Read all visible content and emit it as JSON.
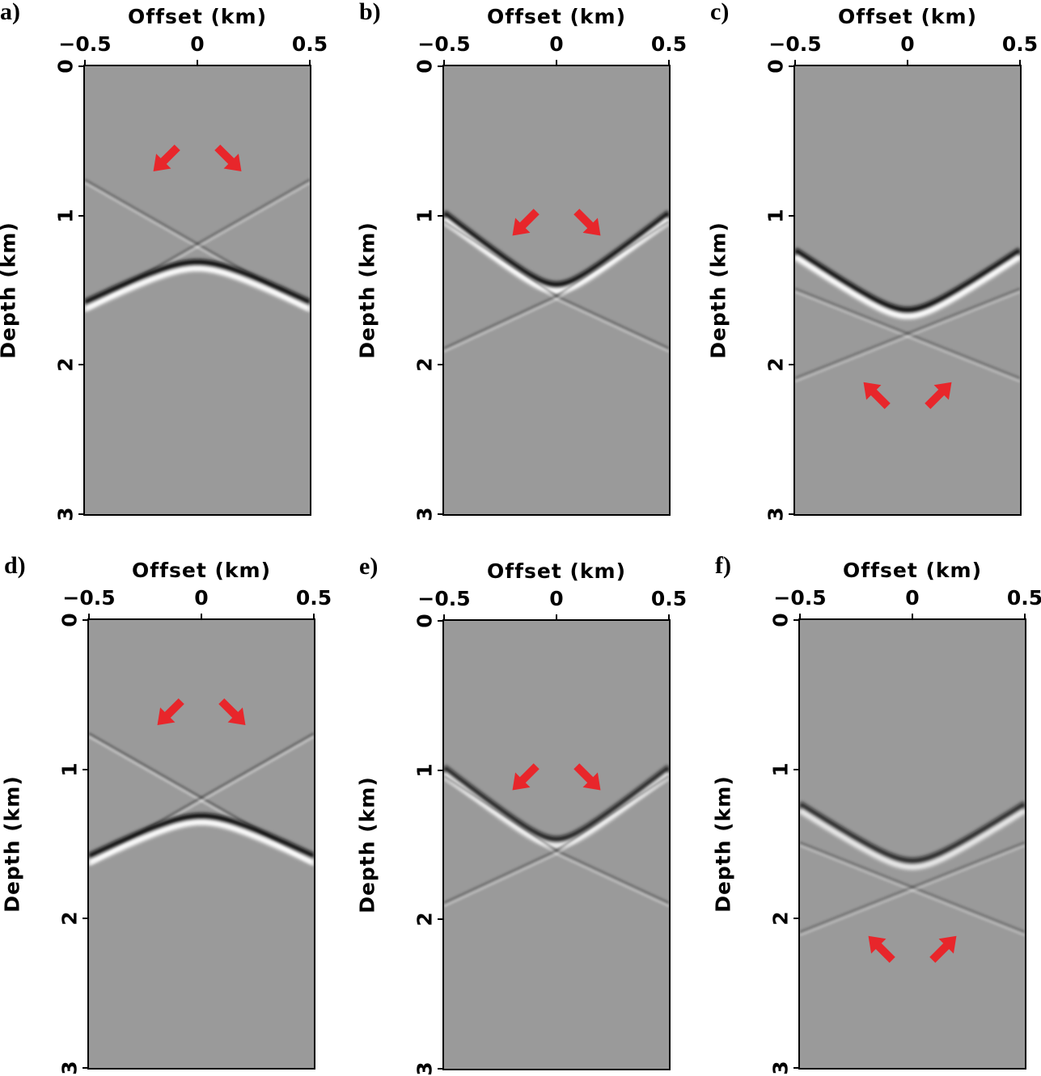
{
  "chart_data": [
    {
      "type": "heatmap",
      "panel_label": "a)",
      "xlabel": "Offset (km)",
      "ylabel": "Depth (km)",
      "xlim": [
        -0.5,
        0.5
      ],
      "ylim": [
        0,
        3
      ],
      "xticks": [
        "−0.5",
        "0",
        "0.5"
      ],
      "yticks": [
        "0",
        "1",
        "2",
        "3"
      ],
      "events": [
        {
          "kind": "cross",
          "center": 1.2,
          "edge_top": 0.77,
          "edge_bottom": 1.63,
          "strength": 0.35
        },
        {
          "kind": "frown",
          "apex": 1.33,
          "edge": 1.6,
          "strength": 1.0
        }
      ],
      "arrows": [
        {
          "x": -0.14,
          "z": 0.62,
          "dir": "down-left"
        },
        {
          "x": 0.14,
          "z": 0.62,
          "dir": "down-right"
        }
      ]
    },
    {
      "type": "heatmap",
      "panel_label": "b)",
      "xlabel": "Offset (km)",
      "ylabel": "Depth (km)",
      "xlim": [
        -0.5,
        0.5
      ],
      "ylim": [
        0,
        3
      ],
      "xticks": [
        "−0.5",
        "0",
        "0.5"
      ],
      "yticks": [
        "0",
        "1",
        "2",
        "3"
      ],
      "events": [
        {
          "kind": "smile",
          "apex": 1.48,
          "edge": 1.0,
          "strength": 1.0
        },
        {
          "kind": "cross",
          "center": 1.55,
          "edge_top": 1.05,
          "edge_bottom": 1.9,
          "strength": 0.35
        }
      ],
      "arrows": [
        {
          "x": -0.14,
          "z": 1.05,
          "dir": "down-left"
        },
        {
          "x": 0.14,
          "z": 1.05,
          "dir": "down-right"
        }
      ]
    },
    {
      "type": "heatmap",
      "panel_label": "c)",
      "xlabel": "Offset (km)",
      "ylabel": "Depth (km)",
      "xlim": [
        -0.5,
        0.5
      ],
      "ylim": [
        0,
        3
      ],
      "xticks": [
        "−0.5",
        "0",
        "0.5"
      ],
      "yticks": [
        "0",
        "1",
        "2",
        "3"
      ],
      "events": [
        {
          "kind": "smile",
          "apex": 1.65,
          "edge": 1.25,
          "strength": 1.0
        },
        {
          "kind": "cross",
          "center": 1.8,
          "edge_top": 1.5,
          "edge_bottom": 2.1,
          "strength": 0.3
        }
      ],
      "arrows": [
        {
          "x": -0.14,
          "z": 2.2,
          "dir": "up-left"
        },
        {
          "x": 0.14,
          "z": 2.2,
          "dir": "up-right"
        }
      ]
    },
    {
      "type": "heatmap",
      "panel_label": "d)",
      "xlabel": "Offset (km)",
      "ylabel": "Depth (km)",
      "xlim": [
        -0.5,
        0.5
      ],
      "ylim": [
        0,
        3
      ],
      "xticks": [
        "−0.5",
        "0",
        "0.5"
      ],
      "yticks": [
        "0",
        "1",
        "2",
        "3"
      ],
      "events": [
        {
          "kind": "cross",
          "center": 1.2,
          "edge_top": 0.77,
          "edge_bottom": 1.63,
          "strength": 0.4
        },
        {
          "kind": "frown",
          "apex": 1.33,
          "edge": 1.6,
          "strength": 1.0
        }
      ],
      "arrows": [
        {
          "x": -0.14,
          "z": 0.62,
          "dir": "down-left"
        },
        {
          "x": 0.14,
          "z": 0.62,
          "dir": "down-right"
        }
      ]
    },
    {
      "type": "heatmap",
      "panel_label": "e)",
      "xlabel": "Offset (km)",
      "ylabel": "Depth (km)",
      "xlim": [
        -0.5,
        0.5
      ],
      "ylim": [
        0,
        3
      ],
      "xticks": [
        "−0.5",
        "0",
        "0.5"
      ],
      "yticks": [
        "0",
        "1",
        "2",
        "3"
      ],
      "events": [
        {
          "kind": "smile",
          "apex": 1.48,
          "edge": 1.0,
          "strength": 0.85
        },
        {
          "kind": "cross",
          "center": 1.55,
          "edge_top": 1.05,
          "edge_bottom": 1.9,
          "strength": 0.35
        }
      ],
      "arrows": [
        {
          "x": -0.14,
          "z": 1.05,
          "dir": "down-left"
        },
        {
          "x": 0.14,
          "z": 1.05,
          "dir": "down-right"
        }
      ]
    },
    {
      "type": "heatmap",
      "panel_label": "f)",
      "xlabel": "Offset (km)",
      "ylabel": "Depth (km)",
      "xlim": [
        -0.5,
        0.5
      ],
      "ylim": [
        0,
        3
      ],
      "xticks": [
        "−0.5",
        "0",
        "0.5"
      ],
      "yticks": [
        "0",
        "1",
        "2",
        "3"
      ],
      "events": [
        {
          "kind": "smile",
          "apex": 1.63,
          "edge": 1.25,
          "strength": 0.8
        },
        {
          "kind": "cross",
          "center": 1.8,
          "edge_top": 1.5,
          "edge_bottom": 2.1,
          "strength": 0.3
        }
      ],
      "arrows": [
        {
          "x": -0.14,
          "z": 2.2,
          "dir": "up-left"
        },
        {
          "x": 0.14,
          "z": 2.2,
          "dir": "up-right"
        }
      ]
    }
  ],
  "colors": {
    "background": "#9a9a9a",
    "arrow": "#e8262b"
  }
}
